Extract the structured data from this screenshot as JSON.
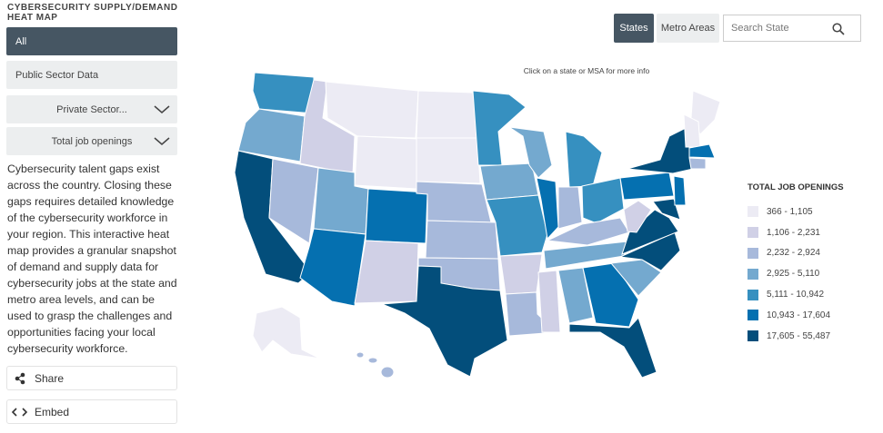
{
  "header": {
    "title": "CYBERSECURITY SUPPLY/DEMAND HEAT MAP"
  },
  "filters": [
    "All",
    "Public Sector Data",
    "Private Sector...",
    "Total job openings"
  ],
  "description": "Cybersecurity talent gaps exist across the country. Closing these gaps requires detailed knowledge of the cybersecurity workforce in your region. This interactive heat map provides a granular snapshot of demand and supply data for cybersecurity jobs at the state and metro area levels, and can be used to grasp the challenges and opportunities facing your local cybersecurity workforce.",
  "actions": [
    "Share",
    "Embed"
  ],
  "view_toggle": [
    "States",
    "Metro Areas"
  ],
  "search": {
    "placeholder": "Search State"
  },
  "map": {
    "hint": "Click on a state or MSA for more info"
  },
  "legend": {
    "title": "TOTAL JOB OPENINGS",
    "items": [
      {
        "label": "366 - 1,105",
        "color": "#ecebf4"
      },
      {
        "label": "1,106 - 2,231",
        "color": "#d0d0e6"
      },
      {
        "label": "2,232 - 2,924",
        "color": "#a7b9db"
      },
      {
        "label": "2,925 - 5,110",
        "color": "#74a9cf"
      },
      {
        "label": "5,111 - 10,942",
        "color": "#3690c0"
      },
      {
        "label": "10,943 - 17,604",
        "color": "#0570b0"
      },
      {
        "label": "17,605 - 55,487",
        "color": "#034e7b"
      }
    ]
  }
}
